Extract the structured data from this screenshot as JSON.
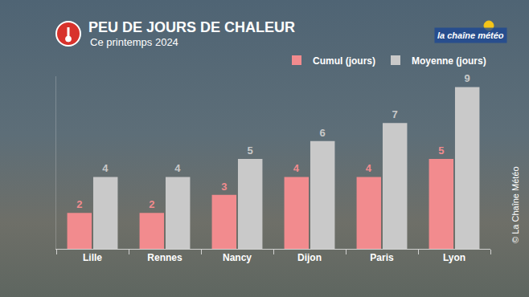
{
  "chart_data": {
    "type": "bar",
    "title": "PEU DE JOURS DE CHALEUR",
    "subtitle": "Ce printemps 2024",
    "categories": [
      "Lille",
      "Rennes",
      "Nancy",
      "Dijon",
      "Paris",
      "Lyon"
    ],
    "series": [
      {
        "name": "Cumul (jours)",
        "color": "#f28b8e",
        "values": [
          2,
          2,
          3,
          4,
          4,
          5
        ]
      },
      {
        "name": "Moyenne (jours)",
        "color": "#c9c9c9",
        "values": [
          4,
          4,
          5,
          6,
          7,
          9
        ]
      }
    ],
    "ylim": [
      0,
      9.6
    ],
    "data_labels": true,
    "tick_labels": "x",
    "grid": false,
    "legend": "top right",
    "annotations": [
      "la chaîne météo",
      "© La Chaîne Météo"
    ]
  }
}
